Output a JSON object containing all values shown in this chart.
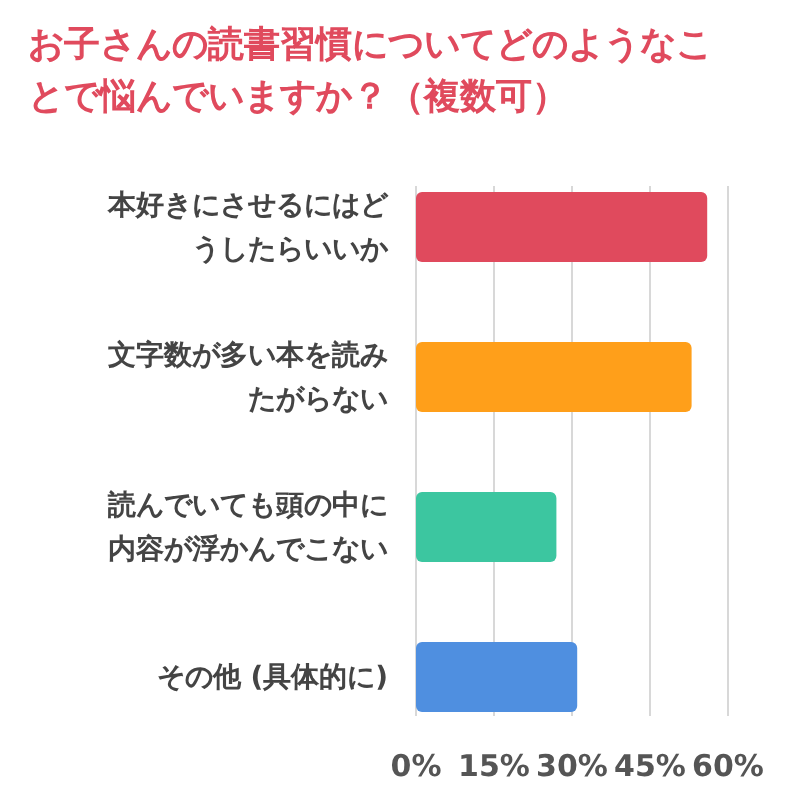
{
  "chart_data": {
    "type": "bar",
    "orientation": "horizontal",
    "title": "お子さんの読書習慣についてどのようなことで悩んでいますか？（複数可）",
    "categories": [
      "本好きにさせるにはどうしたらいいか",
      "文字数が多い本を読みたがらない",
      "読んでいても頭の中に内容が浮かんでこない",
      "その他 (具体的に)"
    ],
    "values": [
      56,
      53,
      27,
      31
    ],
    "colors": [
      "#e04a5d",
      "#ff9f1a",
      "#3cc6a0",
      "#4f8fe0"
    ],
    "xlim": [
      0,
      60
    ],
    "xticks": [
      {
        "value": 0,
        "label": "0%"
      },
      {
        "value": 15,
        "label": "15%"
      },
      {
        "value": 30,
        "label": "30%"
      },
      {
        "value": 45,
        "label": "45%"
      },
      {
        "value": 60,
        "label": "60%"
      }
    ],
    "grid": "x"
  }
}
